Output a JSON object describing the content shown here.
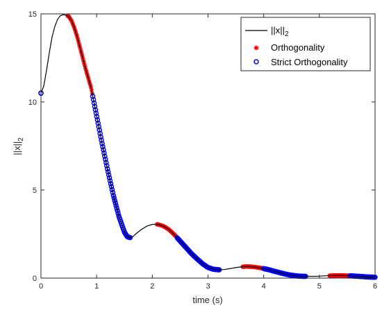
{
  "chart_data": {
    "type": "line",
    "xlabel": "time (s)",
    "ylabel_main": "||x||",
    "ylabel_sub": "2",
    "xlim": [
      0,
      6
    ],
    "ylim": [
      0,
      15
    ],
    "x_ticks": [
      "0",
      "1",
      "2",
      "3",
      "4",
      "5",
      "6"
    ],
    "y_ticks": [
      "0",
      "5",
      "10",
      "15"
    ],
    "grid": false,
    "legend_position": "top-right",
    "series": [
      {
        "name_main": "||x||",
        "name_sub": "2",
        "kind": "line",
        "color": "#000000",
        "x": [
          0,
          0.05,
          0.1,
          0.15,
          0.2,
          0.25,
          0.3,
          0.35,
          0.4,
          0.45,
          0.5,
          0.55,
          0.6,
          0.65,
          0.7,
          0.8,
          0.9,
          1.0,
          1.1,
          1.2,
          1.3,
          1.4,
          1.5,
          1.55,
          1.6,
          1.65,
          1.7,
          1.8,
          1.9,
          2.0,
          2.1,
          2.2,
          2.3,
          2.4,
          2.5,
          2.6,
          2.7,
          2.8,
          2.9,
          3.0,
          3.1,
          3.2,
          3.3,
          3.4,
          3.5,
          3.6,
          3.7,
          3.8,
          3.9,
          4.0,
          4.1,
          4.2,
          4.3,
          4.4,
          4.5,
          4.6,
          4.7,
          4.8,
          4.9,
          5.0,
          5.1,
          5.2,
          5.3,
          5.4,
          5.5,
          5.6,
          5.7,
          5.8,
          5.9,
          6.0
        ],
        "y": [
          10.5,
          10.9,
          11.8,
          12.8,
          13.7,
          14.3,
          14.7,
          14.9,
          14.95,
          14.93,
          14.85,
          14.6,
          14.2,
          13.7,
          13.1,
          11.9,
          10.8,
          9.2,
          7.6,
          6.1,
          4.7,
          3.5,
          2.6,
          2.35,
          2.3,
          2.35,
          2.5,
          2.75,
          2.95,
          3.05,
          3.05,
          2.95,
          2.75,
          2.45,
          2.1,
          1.75,
          1.4,
          1.1,
          0.82,
          0.6,
          0.5,
          0.47,
          0.49,
          0.54,
          0.6,
          0.64,
          0.66,
          0.64,
          0.6,
          0.54,
          0.47,
          0.38,
          0.3,
          0.22,
          0.16,
          0.12,
          0.1,
          0.1,
          0.1,
          0.11,
          0.13,
          0.14,
          0.15,
          0.15,
          0.14,
          0.12,
          0.1,
          0.08,
          0.06,
          0.05
        ]
      },
      {
        "name": "Orthogonality",
        "kind": "markers",
        "marker": "asterisk",
        "color": "#ff0000",
        "segments": [
          [
            0.48,
            0.92
          ],
          [
            2.08,
            2.45
          ],
          [
            3.62,
            4.0
          ],
          [
            5.18,
            5.55
          ]
        ]
      },
      {
        "name": "Strict Orthogonality",
        "kind": "markers",
        "marker": "circle",
        "color": "#0000ff",
        "segments": [
          [
            0.0,
            0.0
          ],
          [
            0.93,
            1.6
          ],
          [
            2.45,
            3.2
          ],
          [
            4.0,
            4.75
          ],
          [
            5.55,
            6.0
          ]
        ]
      }
    ]
  }
}
